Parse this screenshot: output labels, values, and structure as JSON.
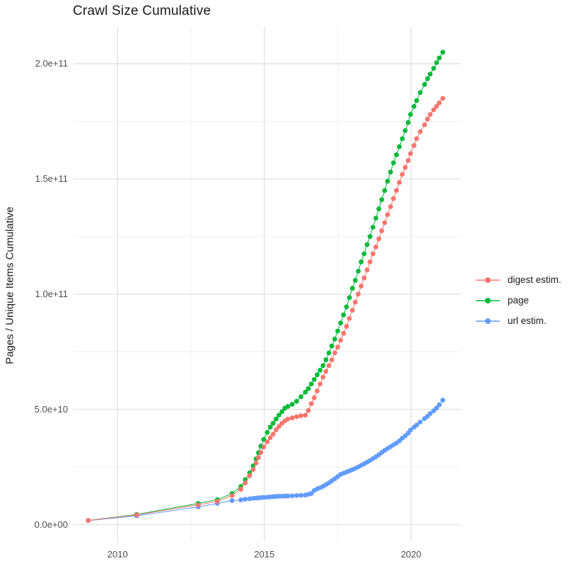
{
  "title": "Crawl Size Cumulative",
  "ylabel": "Pages / Unique Items Cumulative",
  "legend": {
    "items": [
      {
        "label": "digest estim.",
        "color": "#F8766D"
      },
      {
        "label": "page",
        "color": "#00BA38"
      },
      {
        "label": "url estim.",
        "color": "#619CFF"
      }
    ]
  },
  "colors": {
    "background": "#FFFFFF",
    "grid_major": "#E3E3E3",
    "grid_minor": "#F0F0F0",
    "axis_text": "#4D4D4D",
    "series_digest": "#F8766D",
    "series_page": "#00BA38",
    "series_url": "#619CFF"
  },
  "chart_data": {
    "type": "scatter",
    "title": "Crawl Size Cumulative",
    "xlabel": "",
    "ylabel": "Pages / Unique Items Cumulative",
    "value_unit": "billions of pages / unique items (1e9)",
    "x": [
      2009.0,
      2010.65,
      2012.75,
      2013.4,
      2013.9,
      2014.2,
      2014.35,
      2014.5,
      2014.62,
      2014.72,
      2014.8,
      2014.88,
      2014.98,
      2015.1,
      2015.2,
      2015.3,
      2015.4,
      2015.5,
      2015.6,
      2015.7,
      2015.8,
      2015.95,
      2016.1,
      2016.25,
      2016.4,
      2016.5,
      2016.6,
      2016.7,
      2016.8,
      2016.9,
      2017.0,
      2017.1,
      2017.2,
      2017.3,
      2017.4,
      2017.5,
      2017.6,
      2017.7,
      2017.8,
      2017.9,
      2018.0,
      2018.1,
      2018.2,
      2018.3,
      2018.4,
      2018.5,
      2018.6,
      2018.7,
      2018.8,
      2018.9,
      2019.0,
      2019.1,
      2019.2,
      2019.3,
      2019.4,
      2019.5,
      2019.6,
      2019.7,
      2019.8,
      2019.9,
      2019.98,
      2020.1,
      2020.19,
      2020.31,
      2020.46,
      2020.56,
      2020.65,
      2020.77,
      2020.87,
      2020.96,
      2021.08
    ],
    "series": [
      {
        "name": "digest estim.",
        "color": "#F8766D",
        "values": [
          1.8,
          4.2,
          8.6,
          10.1,
          12.6,
          15.3,
          18.1,
          21.2,
          23.9,
          26.7,
          29.1,
          31.3,
          33.7,
          35.9,
          37.7,
          39.3,
          41.1,
          42.6,
          44.0,
          45.0,
          45.8,
          46.3,
          46.8,
          47.2,
          47.5,
          49.5,
          52.5,
          55.0,
          58.0,
          61.0,
          64.0,
          66.5,
          69.0,
          71.5,
          74.5,
          77.0,
          80.0,
          83.0,
          86.0,
          89.5,
          93.0,
          96.5,
          100.0,
          103.5,
          107.0,
          110.5,
          114.0,
          117.5,
          120.5,
          124.0,
          127.5,
          131.0,
          134.5,
          138.0,
          141.5,
          145.0,
          148.5,
          152.0,
          155.0,
          158.0,
          161.0,
          164.5,
          167.5,
          170.5,
          173.5,
          176.0,
          178.0,
          180.0,
          181.5,
          183.0,
          185.0
        ]
      },
      {
        "name": "page",
        "color": "#00BA38",
        "values": [
          1.8,
          4.4,
          9.2,
          10.8,
          13.5,
          16.5,
          19.5,
          22.5,
          25.5,
          28.5,
          31.2,
          34.0,
          37.0,
          40.0,
          42.3,
          44.0,
          45.8,
          47.5,
          49.0,
          50.5,
          51.3,
          52.2,
          53.5,
          55.5,
          57.5,
          59.0,
          61.0,
          63.0,
          65.0,
          67.0,
          69.0,
          71.5,
          74.5,
          77.5,
          80.5,
          84.0,
          87.5,
          91.0,
          94.5,
          98.5,
          102.5,
          106.0,
          110.0,
          114.0,
          117.5,
          121.5,
          125.0,
          129.0,
          133.0,
          137.0,
          141.0,
          145.0,
          149.0,
          153.0,
          157.0,
          160.5,
          164.0,
          167.5,
          171.0,
          174.5,
          178.0,
          181.5,
          184.0,
          187.5,
          191.0,
          193.5,
          195.5,
          198.0,
          200.5,
          202.5,
          205.0
        ]
      },
      {
        "name": "url estim.",
        "color": "#619CFF",
        "values": [
          1.7,
          3.8,
          7.7,
          9.2,
          10.4,
          10.7,
          11.0,
          11.2,
          11.4,
          11.5,
          11.6,
          11.7,
          11.8,
          11.9,
          12.0,
          12.1,
          12.2,
          12.3,
          12.3,
          12.4,
          12.4,
          12.5,
          12.6,
          12.7,
          12.8,
          13.1,
          13.5,
          14.8,
          15.5,
          16.0,
          16.6,
          17.3,
          18.1,
          19.0,
          19.9,
          20.8,
          21.8,
          22.3,
          22.8,
          23.3,
          23.8,
          24.4,
          25.0,
          25.7,
          26.4,
          27.1,
          27.8,
          28.6,
          29.4,
          30.3,
          31.3,
          32.2,
          33.0,
          33.8,
          34.6,
          35.4,
          36.3,
          37.5,
          38.5,
          39.7,
          41.0,
          42.3,
          43.2,
          44.5,
          46.0,
          47.0,
          48.2,
          49.4,
          50.6,
          52.0,
          54.0
        ]
      }
    ],
    "x_ticks": {
      "values": [
        2010,
        2015,
        2020
      ],
      "labels": [
        "2010",
        "2015",
        "2020"
      ]
    },
    "x_minor": [
      2012.5,
      2017.5
    ],
    "y_ticks": {
      "values": [
        0,
        50,
        100,
        150,
        200
      ],
      "labels": [
        "0.0e+00",
        "5.0e+10",
        "1.0e+11",
        "1.5e+11",
        "2.0e+11"
      ]
    },
    "y_minor": [
      25,
      75,
      125,
      175
    ],
    "xlim": [
      2008.5,
      2021.7
    ],
    "ylim": [
      -7.5,
      216
    ],
    "grid": true,
    "legend_position": "right",
    "legend_order": [
      "digest estim.",
      "page",
      "url estim."
    ]
  }
}
